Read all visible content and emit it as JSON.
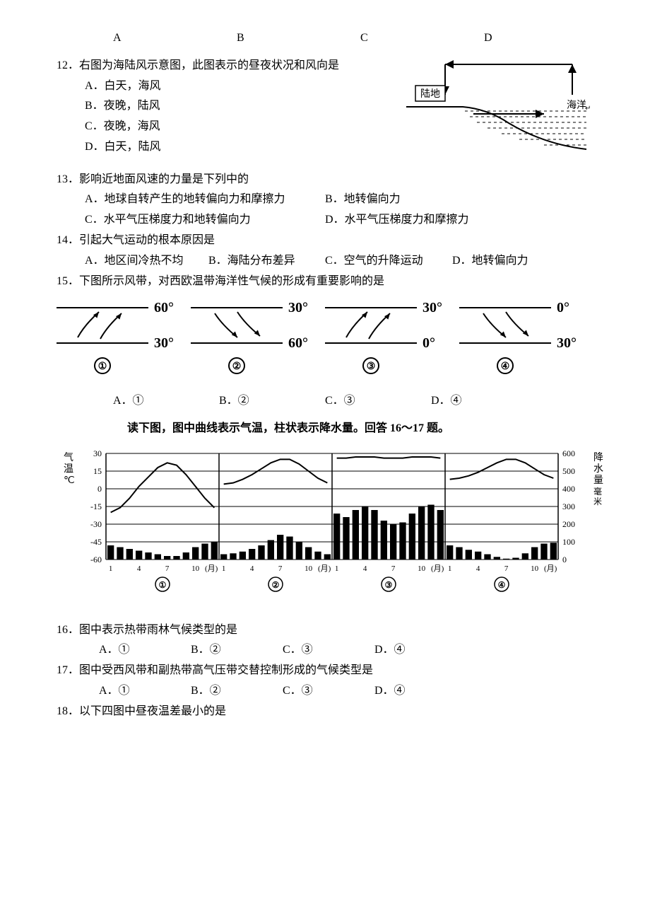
{
  "topLabels": {
    "a": "A",
    "b": "B",
    "c": "C",
    "d": "D"
  },
  "q12": {
    "num": "12",
    "text": "右图为海陆风示意图，此图表示的昼夜状况和风向是",
    "a": "A．白天，海风",
    "b": "B．夜晚，陆风",
    "c": "C．夜晚，海风",
    "d": "D．白天，陆风",
    "diagram": {
      "land": "陆地",
      "sea": "海洋"
    }
  },
  "q13": {
    "num": "13",
    "text": "影响近地面风速的力量是下列中的",
    "a": "A．地球自转产生的地转偏向力和摩擦力",
    "b": "B．地转偏向力",
    "c": "C．水平气压梯度力和地转偏向力",
    "d": "D．水平气压梯度力和摩擦力"
  },
  "q14": {
    "num": "14",
    "text": "引起大气运动的根本原因是",
    "a": "A．地区间冷热不均",
    "b": "B．海陆分布差异",
    "c": "C．空气的升降运动",
    "d": "D．地转偏向力"
  },
  "q15": {
    "num": "15",
    "text": "下图所示风带，对西欧温带海洋性气候的形成有重要影响的是",
    "a": "A．①",
    "b": "B．②",
    "c": "C．③",
    "d": "D．④",
    "panels": [
      {
        "top": "60°",
        "bottom": "30°",
        "label": "①"
      },
      {
        "top": "30°",
        "bottom": "60°",
        "label": "②"
      },
      {
        "top": "30°",
        "bottom": "0°",
        "label": "③"
      },
      {
        "top": "0°",
        "bottom": "30°",
        "label": "④"
      }
    ]
  },
  "climateIntro": "读下图，图中曲线表示气温，柱状表示降水量。回答 16～17 题。",
  "climateChart": {
    "tempLabel": "气温℃",
    "precipLabel": "降水量(毫米)",
    "tempTicks": [
      30,
      15,
      0,
      -15,
      -30,
      -45,
      -60
    ],
    "precipTicks": [
      600,
      500,
      400,
      300,
      200,
      100,
      0
    ],
    "xTicks": [
      1,
      4,
      7,
      10
    ],
    "xUnit": "(月)",
    "panelLabels": [
      "①",
      "②",
      "③",
      "④"
    ],
    "tempRange": [
      -60,
      30
    ],
    "precipRange": [
      0,
      600
    ],
    "panels": [
      {
        "temp": [
          -20,
          -16,
          -8,
          2,
          10,
          18,
          22,
          20,
          12,
          2,
          -8,
          -16
        ],
        "precip": [
          80,
          70,
          60,
          50,
          40,
          30,
          20,
          20,
          40,
          70,
          90,
          100
        ]
      },
      {
        "temp": [
          4,
          5,
          8,
          12,
          17,
          22,
          25,
          25,
          21,
          15,
          9,
          5
        ],
        "precip": [
          30,
          35,
          45,
          60,
          80,
          110,
          140,
          130,
          100,
          70,
          45,
          30
        ]
      },
      {
        "temp": [
          26,
          26,
          27,
          27,
          27,
          26,
          26,
          26,
          27,
          27,
          27,
          26
        ],
        "precip": [
          260,
          240,
          280,
          300,
          280,
          220,
          200,
          210,
          260,
          300,
          310,
          280
        ]
      },
      {
        "temp": [
          8,
          9,
          11,
          14,
          18,
          22,
          25,
          25,
          22,
          17,
          12,
          9
        ],
        "precip": [
          80,
          70,
          55,
          45,
          30,
          15,
          5,
          10,
          35,
          70,
          90,
          95
        ]
      }
    ],
    "colors": {
      "line": "#000000",
      "bar": "#000000",
      "axis": "#000000"
    }
  },
  "q16": {
    "num": "16",
    "text": "图中表示热带雨林气候类型的是",
    "a": "A．①",
    "b": "B．②",
    "c": "C．③",
    "d": "D．④"
  },
  "q17": {
    "num": "17",
    "text": "图中受西风带和副热带高气压带交替控制形成的气候类型是",
    "a": "A．①",
    "b": "B．②",
    "c": "C．③",
    "d": "D．④"
  },
  "q18": {
    "num": "18",
    "text": "以下四图中昼夜温差最小的是"
  }
}
